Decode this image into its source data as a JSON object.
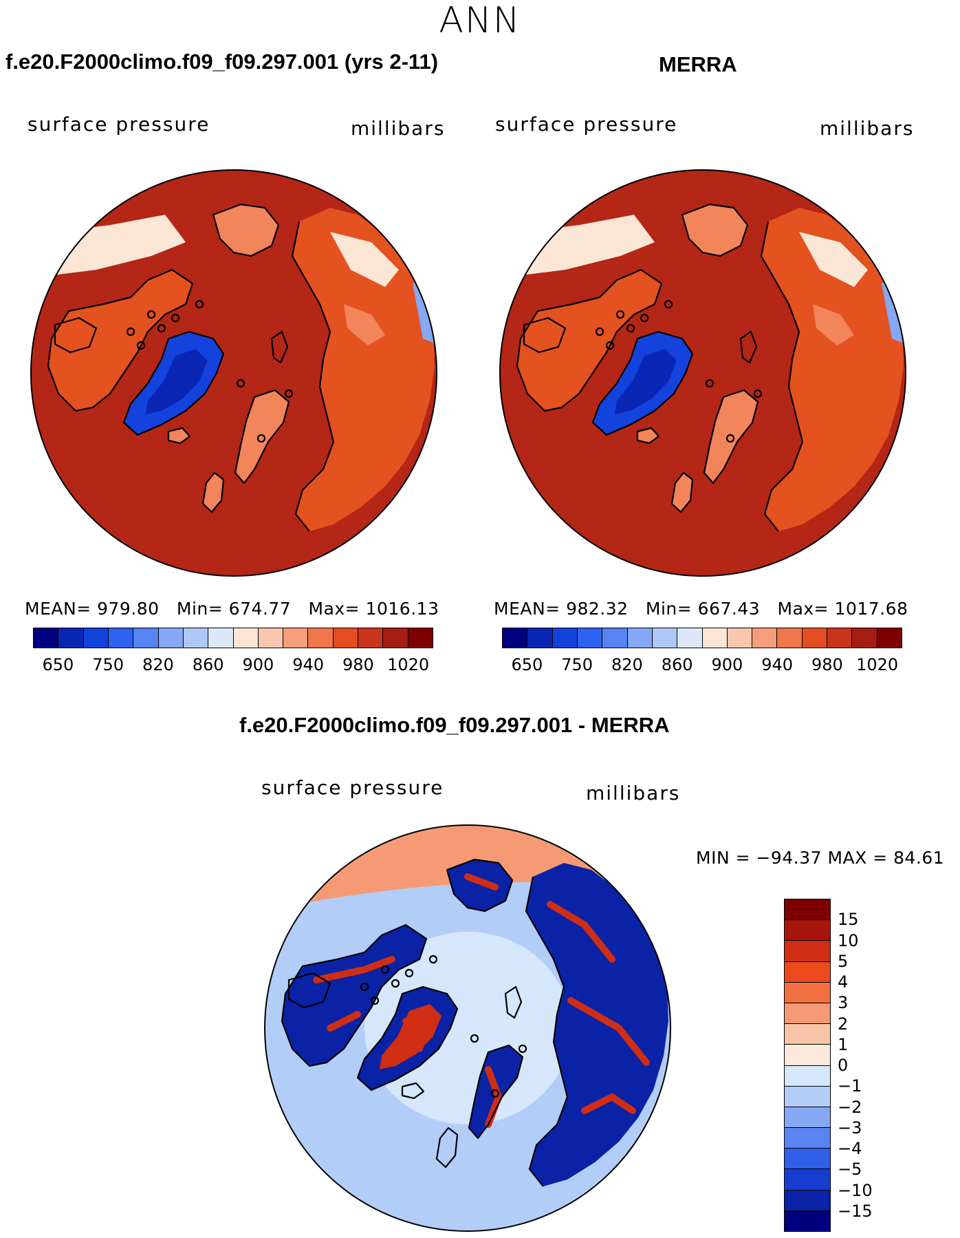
{
  "figure": {
    "season": "ANN"
  },
  "panels": [
    {
      "id": "model",
      "title": "f.e20.F2000climo.f09_f09.297.001 (yrs 2-11)",
      "variable": "surface pressure",
      "units": "millibars",
      "stats": {
        "mean_label": "MEAN=",
        "mean": "979.80",
        "min_label": "Min=",
        "min": "674.77",
        "max_label": "Max=",
        "max": "1016.13"
      }
    },
    {
      "id": "obs",
      "title": "MERRA",
      "variable": "surface pressure",
      "units": "millibars",
      "stats": {
        "mean_label": "MEAN=",
        "mean": "982.32",
        "min_label": "Min=",
        "min": "667.43",
        "max_label": "Max=",
        "max": "1017.68"
      }
    },
    {
      "id": "diff",
      "title": "f.e20.F2000climo.f09_f09.297.001 - MERRA",
      "variable": "surface pressure",
      "units": "millibars",
      "stats": {
        "minmax_text": "MIN = −94.37 MAX =   84.61"
      }
    }
  ],
  "colorbars": {
    "abs": {
      "colors": [
        "#00007f",
        "#0a26b4",
        "#1442dc",
        "#2e62f0",
        "#5883f3",
        "#86a8f5",
        "#b0c8f7",
        "#dce8f8",
        "#fbe6d6",
        "#f9c7ad",
        "#f59e7b",
        "#f07749",
        "#e44d22",
        "#c9341a",
        "#a41c12",
        "#7f0000"
      ],
      "labels": [
        "650",
        "750",
        "820",
        "860",
        "900",
        "940",
        "980",
        "1020"
      ]
    },
    "diff": {
      "colors": [
        "#7f0000",
        "#a8150c",
        "#cf2e13",
        "#ec4a1d",
        "#f2703f",
        "#f59a74",
        "#f8c4a8",
        "#fbe9dc",
        "#d6e6fb",
        "#b2cdf8",
        "#86a9f5",
        "#5a84f1",
        "#2f5fe9",
        "#163dd0",
        "#0a22a6",
        "#00007f"
      ],
      "labels": [
        "15",
        "10",
        "5",
        "4",
        "3",
        "2",
        "1",
        "0",
        "−1",
        "−2",
        "−3",
        "−4",
        "−5",
        "−10",
        "−15"
      ]
    }
  },
  "map_colors": {
    "ocean_high": "#b42616",
    "land_mid": "#e4521f",
    "land_low": "#f2855a",
    "highland": "#fbe6d6",
    "greenland": "#1442dc",
    "greenland_core": "#0a26b4",
    "coast": "#000000",
    "diff_base": "#b2cdf8",
    "diff_ocean": "#d6e6fb",
    "diff_pos": "#cf2e13",
    "diff_neg": "#0a22a6"
  }
}
